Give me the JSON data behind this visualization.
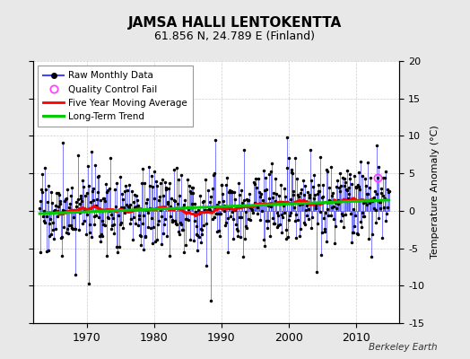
{
  "title": "JAMSA HALLI LENTOKENTTA",
  "subtitle": "61.856 N, 24.789 E (Finland)",
  "ylabel": "Temperature Anomaly (°C)",
  "watermark": "Berkeley Earth",
  "xlim": [
    1962.0,
    2016.5
  ],
  "ylim": [
    -15,
    20
  ],
  "yticks": [
    -15,
    -10,
    -5,
    0,
    5,
    10,
    15,
    20
  ],
  "xticks": [
    1970,
    1980,
    1990,
    2000,
    2010
  ],
  "background_color": "#e8e8e8",
  "plot_bg_color": "#ffffff",
  "raw_line_color": "#4444ff",
  "raw_marker_color": "#000000",
  "qc_fail_color": "#ff44ff",
  "moving_avg_color": "#ff0000",
  "trend_color": "#00cc00",
  "seed": 17,
  "start_year": 1963,
  "end_year": 2014,
  "months_per_year": 12
}
